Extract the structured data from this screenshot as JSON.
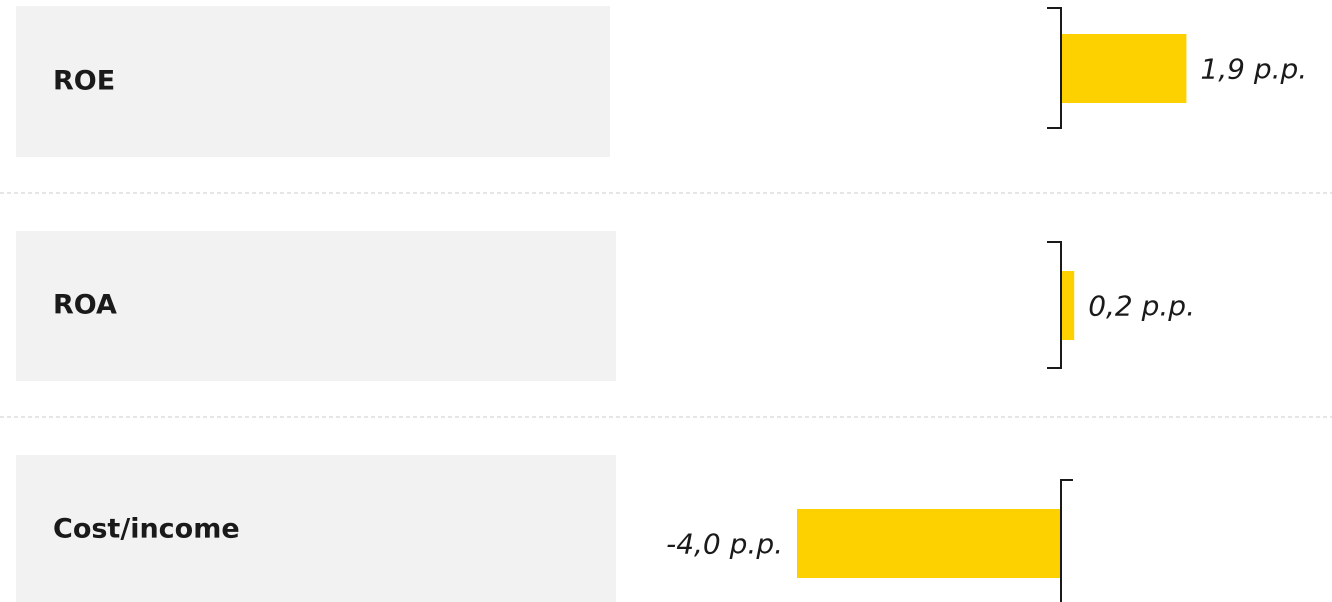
{
  "chart_data": {
    "type": "bar",
    "orientation": "horizontal",
    "categories": [
      "ROE",
      "ROA",
      "Cost/income"
    ],
    "values": [
      1.9,
      0.2,
      -4.0
    ],
    "value_labels": [
      "1,9 p.p.",
      "0,2 p.p.",
      "-4,0 p.p."
    ],
    "color": "#fdd000"
  }
}
